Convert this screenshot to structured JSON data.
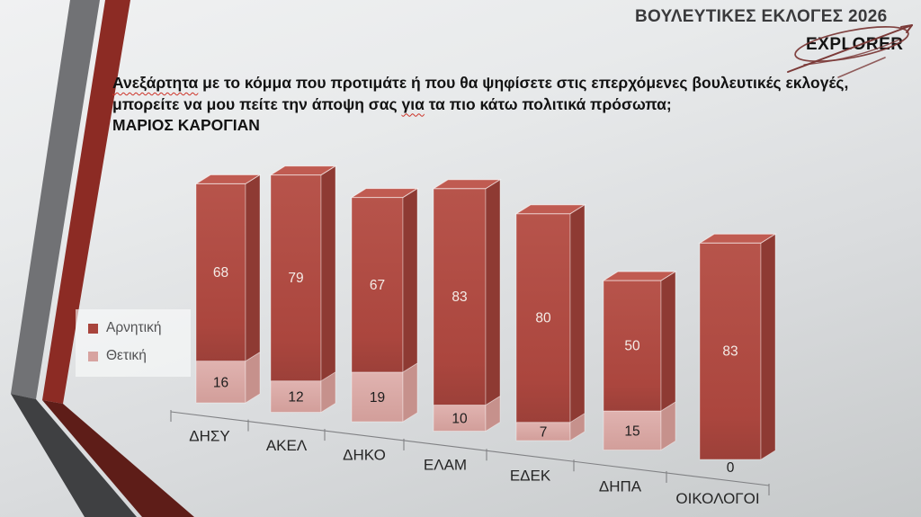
{
  "header": {
    "event_title": "ΒΟΥΛΕΥΤΙΚΕΣ ΕΚΛΟΓΕΣ 2026",
    "logo_text": "EXPLORER"
  },
  "question": {
    "line1_word": "Ανεξάρτητα",
    "line1_rest": " με το κόμμα που προτιμάτε ή που θα ψηφίσετε στις επερχόμενες βουλευτικές εκλογές,",
    "line2_pre": "μπορείτε να μου πείτε την άποψη σας ",
    "line2_word": "για",
    "line2_rest": " τα πιο κάτω πολιτικά πρόσωπα;",
    "line3": "ΜΑΡΙΟΣ ΚΑΡΟΓΙΑΝ"
  },
  "legend": [
    {
      "label": "Αρνητική",
      "color": "#a8443c"
    },
    {
      "label": "Θετική",
      "color": "#d7a3a0"
    }
  ],
  "chart_data": {
    "type": "bar",
    "style": "3d-stacked-column",
    "title": "",
    "categories": [
      "ΔΗΣΥ",
      "ΑΚΕΛ",
      "ΔΗΚΟ",
      "ΕΛΑΜ",
      "ΕΔΕΚ",
      "ΔΗΠΑ",
      "ΟΙΚΟΛΟΓΟΙ"
    ],
    "series": [
      {
        "name": "Αρνητική",
        "color": "#ad4840",
        "values": [
          68,
          79,
          67,
          83,
          80,
          50,
          83
        ]
      },
      {
        "name": "Θετική",
        "color": "#dcaeab",
        "values": [
          16,
          12,
          19,
          10,
          7,
          15,
          0
        ]
      }
    ],
    "stack_bottom_series": "Θετική",
    "value_labels": true,
    "grid": false,
    "legend_position": "left"
  },
  "colors": {
    "negative_front": "#ad4840",
    "negative_side": "#8e3a33",
    "negative_top": "#c05b51",
    "positive_front": "#dcaeab",
    "positive_side": "#c6918c",
    "positive_top": "#e3bcb9",
    "axis": "#808184",
    "ribbon_gray": "#717275",
    "ribbon_gray_dark": "#3f4042",
    "ribbon_red": "#8c2b24",
    "ribbon_red_dark": "#5e1d18",
    "logo_swoosh": "#7b3a38"
  }
}
